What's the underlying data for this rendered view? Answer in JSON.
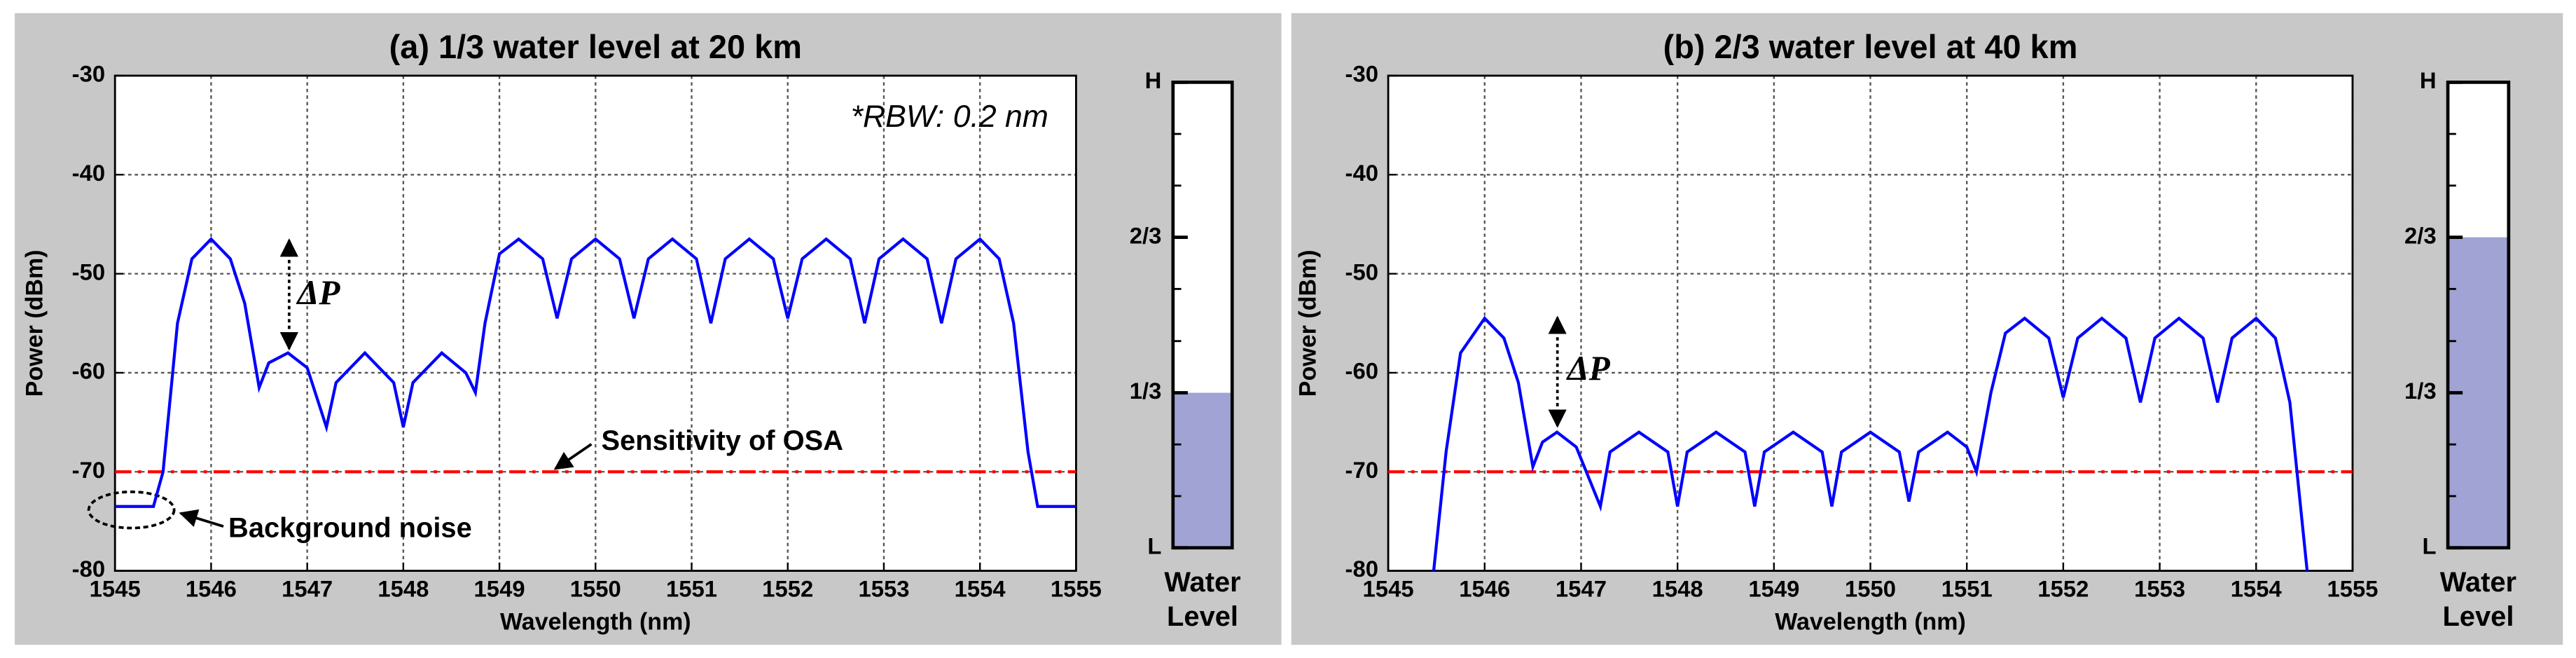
{
  "chart_data": [
    {
      "type": "line",
      "title": "(a) 1/3 water level at 20 km",
      "xlabel": "Wavelength (nm)",
      "ylabel": "Power (dBm)",
      "xlim": [
        1545,
        1555
      ],
      "xticks": [
        1545,
        1546,
        1547,
        1548,
        1549,
        1550,
        1551,
        1552,
        1553,
        1554,
        1555
      ],
      "ylim": [
        -80,
        -30
      ],
      "yticks": [
        -80,
        -70,
        -60,
        -50,
        -40,
        -30
      ],
      "grid": true,
      "color": "#0000ff",
      "x": [
        1545,
        1545.4,
        1545.5,
        1545.65,
        1545.8,
        1546.0,
        1546.2,
        1546.35,
        1546.5,
        1546.6,
        1546.8,
        1547.0,
        1547.2,
        1547.3,
        1547.6,
        1547.9,
        1548.0,
        1548.1,
        1548.4,
        1548.65,
        1548.75,
        1548.85,
        1549.0,
        1549.2,
        1549.45,
        1549.6,
        1549.75,
        1550.0,
        1550.25,
        1550.4,
        1550.55,
        1550.8,
        1551.05,
        1551.2,
        1551.35,
        1551.6,
        1551.85,
        1552.0,
        1552.15,
        1552.4,
        1552.65,
        1552.8,
        1552.95,
        1553.2,
        1553.45,
        1553.6,
        1553.75,
        1554.0,
        1554.2,
        1554.35,
        1554.5,
        1554.6,
        1555
      ],
      "values": [
        -73.5,
        -73.5,
        -70,
        -55,
        -48.5,
        -46.5,
        -48.5,
        -53,
        -61.5,
        -59,
        -58,
        -59.5,
        -65.5,
        -61,
        -58,
        -61,
        -65.5,
        -61,
        -58,
        -60,
        -62,
        -55,
        -48,
        -46.5,
        -48.5,
        -54.5,
        -48.5,
        -46.5,
        -48.5,
        -54.5,
        -48.5,
        -46.5,
        -48.5,
        -55,
        -48.5,
        -46.5,
        -48.5,
        -54.5,
        -48.5,
        -46.5,
        -48.5,
        -55,
        -48.5,
        -46.5,
        -48.5,
        -55,
        -48.5,
        -46.5,
        -48.5,
        -55,
        -68,
        -73.5,
        -73.5
      ],
      "threshold": -70,
      "threshold_color": "#ff0000",
      "annotations": [
        "*RBW: 0.2 nm",
        "ΔP",
        "Sensitivity of OSA",
        "Background noise"
      ],
      "gauge": {
        "label_lines": [
          "Water",
          "Level"
        ],
        "level": 0.333,
        "fill": "#a0a3d3",
        "ticks": [
          {
            "value": 1,
            "label": "H"
          },
          {
            "value": 0.667,
            "label": "2/3"
          },
          {
            "value": 0.333,
            "label": "1/3"
          },
          {
            "value": 0,
            "label": "L"
          }
        ],
        "minor_ticks": [
          0.111,
          0.222,
          0.444,
          0.556,
          0.778,
          0.889
        ]
      }
    },
    {
      "type": "line",
      "title": "(b) 2/3 water level at 40 km",
      "xlabel": "Wavelength (nm)",
      "ylabel": "Power (dBm)",
      "xlim": [
        1545,
        1555
      ],
      "xticks": [
        1545,
        1546,
        1547,
        1548,
        1549,
        1550,
        1551,
        1552,
        1553,
        1554,
        1555
      ],
      "ylim": [
        -80,
        -30
      ],
      "yticks": [
        -80,
        -70,
        -60,
        -50,
        -40,
        -30
      ],
      "grid": true,
      "color": "#0000ff",
      "x": [
        1545.45,
        1545.6,
        1545.75,
        1546.0,
        1546.2,
        1546.35,
        1546.5,
        1546.6,
        1546.75,
        1546.95,
        1547.2,
        1547.3,
        1547.6,
        1547.9,
        1548.0,
        1548.1,
        1548.4,
        1548.7,
        1548.8,
        1548.9,
        1549.2,
        1549.5,
        1549.6,
        1549.7,
        1550.0,
        1550.3,
        1550.4,
        1550.5,
        1550.8,
        1551.0,
        1551.1,
        1551.25,
        1551.4,
        1551.6,
        1551.85,
        1552.0,
        1552.15,
        1552.4,
        1552.65,
        1552.8,
        1552.95,
        1553.2,
        1553.45,
        1553.6,
        1553.75,
        1554.0,
        1554.2,
        1554.35,
        1554.55
      ],
      "values": [
        -82,
        -68,
        -58,
        -54.5,
        -56.5,
        -61,
        -69.5,
        -67,
        -66,
        -67.5,
        -73.5,
        -68,
        -66,
        -68,
        -73.5,
        -68,
        -66,
        -68,
        -73.5,
        -68,
        -66,
        -68,
        -73.5,
        -68,
        -66,
        -68,
        -73,
        -68,
        -66,
        -67.5,
        -70,
        -62,
        -56,
        -54.5,
        -56.5,
        -62.5,
        -56.5,
        -54.5,
        -56.5,
        -63,
        -56.5,
        -54.5,
        -56.5,
        -63,
        -56.5,
        -54.5,
        -56.5,
        -63,
        -82
      ],
      "threshold": -70,
      "threshold_color": "#ff0000",
      "annotations": [
        "ΔP"
      ],
      "gauge": {
        "label_lines": [
          "Water",
          "Level"
        ],
        "level": 0.667,
        "fill": "#a0a3d3",
        "ticks": [
          {
            "value": 1,
            "label": "H"
          },
          {
            "value": 0.667,
            "label": "2/3"
          },
          {
            "value": 0.333,
            "label": "1/3"
          },
          {
            "value": 0,
            "label": "L"
          }
        ],
        "minor_ticks": [
          0.111,
          0.222,
          0.444,
          0.556,
          0.778,
          0.889
        ]
      }
    }
  ]
}
